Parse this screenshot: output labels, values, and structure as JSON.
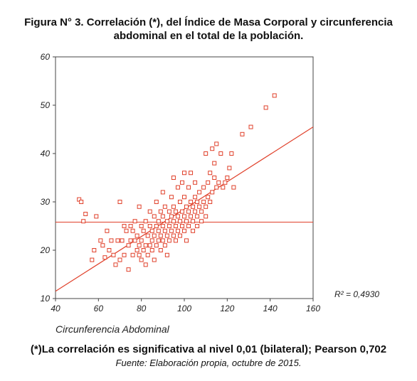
{
  "figure": {
    "title_line1": "Figura N° 3. Correlación (*), del Índice de Masa Corporal y circunferencia",
    "title_line2": "abdominal en el total de la población.",
    "note": "(*)La correlación es significativa al nivel 0,01 (bilateral); Pearson 0,702",
    "source": "Fuente: Elaboración propia, octubre de 2015."
  },
  "chart_data": {
    "type": "scatter",
    "xlabel": "Circunferencia Abdominal",
    "ylabel": "",
    "xlim": [
      40,
      160
    ],
    "ylim": [
      10,
      60
    ],
    "xticks": [
      "40",
      "60",
      "80",
      "100",
      "120",
      "140",
      "160"
    ],
    "yticks": [
      "10",
      "20",
      "30",
      "40",
      "50",
      "60"
    ],
    "r_squared_label": "R² = 0,4930",
    "grid": false,
    "colors": {
      "points": "#e0402a",
      "lines": "#e0402a",
      "axes": "#444444"
    },
    "mean_line_y": 25.8,
    "fit_line": {
      "x": [
        40,
        160
      ],
      "y": [
        11.5,
        45.5
      ]
    },
    "points": [
      [
        51,
        30.5
      ],
      [
        52,
        30
      ],
      [
        53,
        26
      ],
      [
        54,
        27.5
      ],
      [
        57,
        18
      ],
      [
        58,
        20
      ],
      [
        59,
        27
      ],
      [
        61,
        22
      ],
      [
        62,
        21
      ],
      [
        63,
        18.5
      ],
      [
        64,
        24
      ],
      [
        65,
        20
      ],
      [
        66,
        22
      ],
      [
        67,
        19
      ],
      [
        68,
        17
      ],
      [
        69,
        22
      ],
      [
        70,
        30
      ],
      [
        70,
        18
      ],
      [
        71,
        22
      ],
      [
        72,
        19
      ],
      [
        72,
        25
      ],
      [
        73,
        24
      ],
      [
        74,
        16
      ],
      [
        74,
        21
      ],
      [
        75,
        25
      ],
      [
        75,
        22
      ],
      [
        76,
        19
      ],
      [
        76,
        24
      ],
      [
        77,
        26
      ],
      [
        77,
        22
      ],
      [
        78,
        20
      ],
      [
        78,
        23
      ],
      [
        79,
        19
      ],
      [
        79,
        21
      ],
      [
        79,
        29
      ],
      [
        80,
        22
      ],
      [
        80,
        25
      ],
      [
        80,
        18
      ],
      [
        81,
        20
      ],
      [
        81,
        24
      ],
      [
        82,
        21
      ],
      [
        82,
        26
      ],
      [
        82,
        17
      ],
      [
        83,
        23
      ],
      [
        83,
        19
      ],
      [
        84,
        25
      ],
      [
        84,
        21
      ],
      [
        84,
        28
      ],
      [
        85,
        22
      ],
      [
        85,
        20
      ],
      [
        85,
        24
      ],
      [
        86,
        27
      ],
      [
        86,
        23
      ],
      [
        86,
        18
      ],
      [
        87,
        25
      ],
      [
        87,
        21
      ],
      [
        87,
        30
      ],
      [
        88,
        24
      ],
      [
        88,
        22
      ],
      [
        88,
        26
      ],
      [
        89,
        28
      ],
      [
        89,
        20
      ],
      [
        89,
        23
      ],
      [
        90,
        25
      ],
      [
        90,
        22
      ],
      [
        90,
        27
      ],
      [
        90,
        32
      ],
      [
        91,
        24
      ],
      [
        91,
        21
      ],
      [
        91,
        29
      ],
      [
        92,
        26
      ],
      [
        92,
        23
      ],
      [
        92,
        19
      ],
      [
        93,
        25
      ],
      [
        93,
        28
      ],
      [
        93,
        22
      ],
      [
        94,
        27
      ],
      [
        94,
        24
      ],
      [
        94,
        31
      ],
      [
        95,
        26
      ],
      [
        95,
        23
      ],
      [
        95,
        29
      ],
      [
        95,
        35
      ],
      [
        96,
        25
      ],
      [
        96,
        28
      ],
      [
        96,
        22
      ],
      [
        97,
        27
      ],
      [
        97,
        24
      ],
      [
        97,
        33
      ],
      [
        98,
        26
      ],
      [
        98,
        30
      ],
      [
        98,
        23
      ],
      [
        99,
        28
      ],
      [
        99,
        25
      ],
      [
        99,
        34
      ],
      [
        100,
        27
      ],
      [
        100,
        24
      ],
      [
        100,
        31
      ],
      [
        100,
        36
      ],
      [
        101,
        26
      ],
      [
        101,
        29
      ],
      [
        101,
        22
      ],
      [
        102,
        28
      ],
      [
        102,
        25
      ],
      [
        102,
        33
      ],
      [
        103,
        27
      ],
      [
        103,
        30
      ],
      [
        103,
        36
      ],
      [
        104,
        29
      ],
      [
        104,
        26
      ],
      [
        104,
        24
      ],
      [
        105,
        28
      ],
      [
        105,
        31
      ],
      [
        105,
        34
      ],
      [
        106,
        30
      ],
      [
        106,
        27
      ],
      [
        106,
        25
      ],
      [
        107,
        29
      ],
      [
        107,
        32
      ],
      [
        108,
        28
      ],
      [
        108,
        26
      ],
      [
        109,
        30
      ],
      [
        109,
        33
      ],
      [
        110,
        29
      ],
      [
        110,
        40
      ],
      [
        110,
        27
      ],
      [
        111,
        31
      ],
      [
        111,
        34
      ],
      [
        112,
        30
      ],
      [
        112,
        36
      ],
      [
        113,
        32
      ],
      [
        113,
        41
      ],
      [
        114,
        38
      ],
      [
        114,
        35
      ],
      [
        115,
        33
      ],
      [
        115,
        42
      ],
      [
        116,
        34
      ],
      [
        117,
        40
      ],
      [
        118,
        33
      ],
      [
        119,
        34
      ],
      [
        120,
        35
      ],
      [
        121,
        37
      ],
      [
        122,
        40
      ],
      [
        123,
        33
      ],
      [
        127,
        44
      ],
      [
        131,
        45.5
      ],
      [
        138,
        49.5
      ],
      [
        142,
        52
      ]
    ]
  }
}
